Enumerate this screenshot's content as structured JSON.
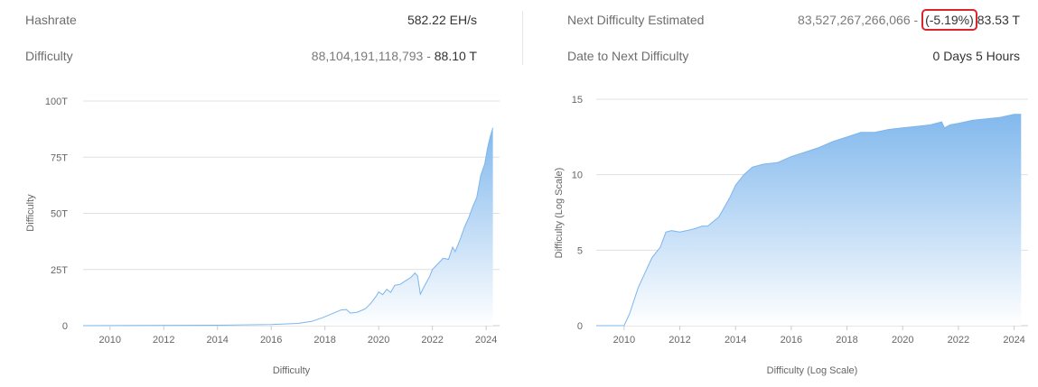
{
  "stats_left": {
    "hashrate_label": "Hashrate",
    "hashrate_value": "582.22 EH/s",
    "difficulty_label": "Difficulty",
    "difficulty_value": "88,104,191,118,793",
    "difficulty_sep": " - ",
    "difficulty_short": "88.10 T"
  },
  "stats_right": {
    "next_label": "Next Difficulty Estimated",
    "next_value": "83,527,267,266,066",
    "next_sep": " - ",
    "next_change": "(-5.19%)",
    "next_short": "83.53 T",
    "date_label": "Date to Next Difficulty",
    "date_value": "0 Days 5 Hours"
  },
  "colors": {
    "series_line": "#7cb5ec",
    "fill_top": "#7cb5ec",
    "fill_bottom": "#ffffff",
    "highlight_border": "#d9262b"
  },
  "chart_data": [
    {
      "type": "area",
      "title": "",
      "xlabel": "Difficulty",
      "ylabel": "Difficulty",
      "xlim": [
        2009.0,
        2024.5
      ],
      "ylim": [
        0,
        100
      ],
      "y_unit": "T",
      "yticks": [
        0,
        25,
        50,
        75,
        100
      ],
      "ytick_labels": [
        "0",
        "25T",
        "50T",
        "75T",
        "100T"
      ],
      "xticks": [
        2010,
        2012,
        2014,
        2016,
        2018,
        2020,
        2022,
        2024
      ],
      "xtick_labels": [
        "2010",
        "2012",
        "2014",
        "2016",
        "2018",
        "2020",
        "2022",
        "2024"
      ],
      "grid": true,
      "legend": "none",
      "x": [
        2009.0,
        2014.0,
        2016.0,
        2017.0,
        2017.5,
        2017.9,
        2018.3,
        2018.6,
        2018.8,
        2018.95,
        2019.2,
        2019.5,
        2019.7,
        2019.9,
        2020.0,
        2020.15,
        2020.3,
        2020.45,
        2020.6,
        2020.8,
        2021.0,
        2021.2,
        2021.35,
        2021.45,
        2021.55,
        2021.7,
        2021.9,
        2022.0,
        2022.2,
        2022.4,
        2022.6,
        2022.75,
        2022.85,
        2022.95,
        2023.05,
        2023.2,
        2023.35,
        2023.5,
        2023.65,
        2023.8,
        2023.95,
        2024.05,
        2024.15,
        2024.25
      ],
      "values": [
        0,
        0.2,
        0.5,
        1.0,
        1.9,
        3.5,
        5.5,
        7.0,
        7.2,
        5.6,
        6.0,
        7.5,
        9.8,
        13.0,
        15.0,
        13.8,
        16.2,
        14.8,
        18.0,
        18.4,
        20.0,
        21.5,
        23.5,
        22.0,
        14.0,
        17.5,
        22.0,
        25.0,
        27.5,
        30.0,
        29.5,
        35.0,
        33.0,
        36.0,
        39.0,
        44.0,
        48.0,
        53.0,
        57.0,
        67.0,
        72.0,
        79.0,
        84.0,
        88.1
      ]
    },
    {
      "type": "area",
      "title": "",
      "xlabel": "Difficulty (Log Scale)",
      "ylabel": "Difficulty (Log Scale)",
      "xlim": [
        2009.0,
        2024.5
      ],
      "ylim": [
        0,
        15
      ],
      "yticks": [
        0,
        5,
        10,
        15
      ],
      "ytick_labels": [
        "0",
        "5",
        "10",
        "15"
      ],
      "xticks": [
        2010,
        2012,
        2014,
        2016,
        2018,
        2020,
        2022,
        2024
      ],
      "xtick_labels": [
        "2010",
        "2012",
        "2014",
        "2016",
        "2018",
        "2020",
        "2022",
        "2024"
      ],
      "grid": true,
      "legend": "none",
      "x": [
        2009.0,
        2010.0,
        2010.2,
        2010.5,
        2010.8,
        2011.0,
        2011.3,
        2011.5,
        2011.7,
        2012.0,
        2012.5,
        2012.8,
        2013.0,
        2013.4,
        2013.8,
        2014.0,
        2014.3,
        2014.6,
        2015.0,
        2015.5,
        2016.0,
        2016.5,
        2017.0,
        2017.5,
        2018.0,
        2018.5,
        2019.0,
        2019.5,
        2020.0,
        2020.5,
        2021.0,
        2021.4,
        2021.5,
        2021.7,
        2022.0,
        2022.5,
        2023.0,
        2023.5,
        2024.0,
        2024.25
      ],
      "values": [
        0,
        0,
        0.8,
        2.5,
        3.7,
        4.5,
        5.2,
        6.2,
        6.3,
        6.2,
        6.4,
        6.6,
        6.6,
        7.2,
        8.5,
        9.3,
        10.0,
        10.5,
        10.7,
        10.8,
        11.2,
        11.5,
        11.8,
        12.2,
        12.5,
        12.8,
        12.8,
        13.0,
        13.1,
        13.2,
        13.3,
        13.5,
        13.1,
        13.3,
        13.4,
        13.6,
        13.7,
        13.8,
        14.0,
        14.0
      ]
    }
  ]
}
